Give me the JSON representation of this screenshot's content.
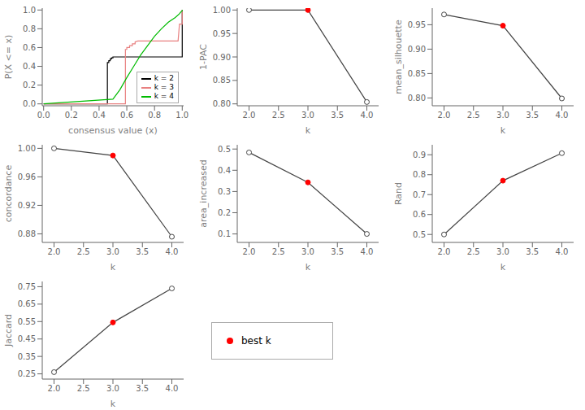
{
  "chart_data": [
    {
      "type": "line",
      "xlabel": "consensus value (x)",
      "ylabel": "P(X <= x)",
      "xlim": [
        -0.01,
        1.01
      ],
      "ylim": [
        -0.02,
        1.02
      ],
      "xticks": [
        {
          "value": 0.0,
          "label": "0.0"
        },
        0.2,
        0.4,
        0.6,
        0.8,
        {
          "value": 1.0,
          "label": "1.0"
        }
      ],
      "yticks": [
        {
          "value": 0.0,
          "label": "0.0"
        },
        0.2,
        0.4,
        0.6,
        0.8,
        {
          "value": 1.0,
          "label": "1.0"
        }
      ],
      "legend": "lower right",
      "series": [
        {
          "name": "k = 2",
          "color": "#000000",
          "x": [
            0.0,
            0.0,
            0.46,
            0.46,
            0.47,
            0.47,
            0.48,
            0.48,
            0.49,
            0.49,
            0.5,
            0.5,
            0.51,
            0.52,
            1.0,
            1.0
          ],
          "values": [
            0.0,
            0.0,
            0.0,
            0.44,
            0.44,
            0.46,
            0.46,
            0.48,
            0.48,
            0.49,
            0.49,
            0.5,
            0.5,
            0.5,
            0.5,
            1.0
          ]
        },
        {
          "name": "k = 3",
          "color": "#E88080",
          "x": [
            0.0,
            0.0,
            0.59,
            0.59,
            0.6,
            0.6,
            0.62,
            0.62,
            0.64,
            0.64,
            0.66,
            0.66,
            0.68,
            0.97,
            0.98,
            1.0,
            1.0
          ],
          "values": [
            0.0,
            0.0,
            0.0,
            0.58,
            0.58,
            0.6,
            0.6,
            0.62,
            0.62,
            0.64,
            0.64,
            0.66,
            0.67,
            0.67,
            0.85,
            0.85,
            1.0
          ]
        },
        {
          "name": "k = 4",
          "color": "#00BB00",
          "x": [
            0.0,
            0.0,
            0.5,
            0.55,
            0.6,
            0.65,
            0.7,
            0.75,
            0.8,
            0.85,
            0.9,
            0.95,
            0.98,
            0.99,
            1.0,
            1.0
          ],
          "values": [
            0.0,
            0.0,
            0.05,
            0.15,
            0.28,
            0.4,
            0.52,
            0.62,
            0.72,
            0.8,
            0.87,
            0.92,
            0.96,
            0.98,
            0.99,
            1.0
          ]
        }
      ]
    },
    {
      "type": "line",
      "xlabel": "k",
      "ylabel": "1-PAC",
      "x": [
        2,
        3,
        4
      ],
      "values": [
        1.0,
        1.0,
        0.804
      ],
      "color": "#444444",
      "marker": "circle",
      "best_k": 3,
      "xlim": [
        1.8,
        4.2
      ],
      "xticks": [
        {
          "value": 2,
          "label": "2.0"
        },
        2.5,
        {
          "value": 3,
          "label": "3.0"
        },
        3.5,
        {
          "value": 4,
          "label": "4.0"
        }
      ],
      "ylim": [
        0.796,
        1.004
      ],
      "yticks": [
        {
          "value": 0.8,
          "label": "0.80"
        },
        0.85,
        {
          "value": 0.9,
          "label": "0.90"
        },
        0.95,
        {
          "value": 1.0,
          "label": "1.00"
        }
      ]
    },
    {
      "type": "line",
      "xlabel": "k",
      "ylabel": "mean_silhouette",
      "x": [
        2,
        3,
        4
      ],
      "values": [
        0.971,
        0.948,
        0.799
      ],
      "color": "#444444",
      "marker": "circle",
      "best_k": 3,
      "xlim": [
        1.8,
        4.2
      ],
      "xticks": [
        {
          "value": 2,
          "label": "2.0"
        },
        2.5,
        {
          "value": 3,
          "label": "3.0"
        },
        3.5,
        {
          "value": 4,
          "label": "4.0"
        }
      ],
      "ylim": [
        0.784,
        0.984
      ],
      "yticks": [
        {
          "value": 0.8,
          "label": "0.80"
        },
        0.85,
        {
          "value": 0.9,
          "label": "0.90"
        },
        0.95
      ]
    },
    {
      "type": "line",
      "xlabel": "k",
      "ylabel": "concordance",
      "x": [
        2,
        3,
        4
      ],
      "values": [
        1.0,
        0.99,
        0.876
      ],
      "color": "#444444",
      "marker": "circle",
      "best_k": 3,
      "xlim": [
        1.8,
        4.2
      ],
      "xticks": [
        {
          "value": 2,
          "label": "2.0"
        },
        2.5,
        {
          "value": 3,
          "label": "3.0"
        },
        3.5,
        {
          "value": 4,
          "label": "4.0"
        }
      ],
      "ylim": [
        0.868,
        1.005
      ],
      "yticks": [
        0.88,
        0.92,
        0.96,
        {
          "value": 1.0,
          "label": "1.00"
        }
      ]
    },
    {
      "type": "line",
      "xlabel": "k",
      "ylabel": "area_increased",
      "x": [
        2,
        3,
        4
      ],
      "values": [
        0.484,
        0.343,
        0.1
      ],
      "color": "#444444",
      "marker": "circle",
      "best_k": 3,
      "xlim": [
        1.8,
        4.2
      ],
      "xticks": [
        {
          "value": 2,
          "label": "2.0"
        },
        2.5,
        {
          "value": 3,
          "label": "3.0"
        },
        3.5,
        {
          "value": 4,
          "label": "4.0"
        }
      ],
      "ylim": [
        0.06,
        0.52
      ],
      "yticks": [
        0.1,
        0.2,
        0.3,
        0.4,
        0.5
      ]
    },
    {
      "type": "line",
      "xlabel": "k",
      "ylabel": "Rand",
      "x": [
        2,
        3,
        4
      ],
      "values": [
        0.5,
        0.77,
        0.908
      ],
      "color": "#444444",
      "marker": "circle",
      "best_k": 3,
      "xlim": [
        1.8,
        4.2
      ],
      "xticks": [
        {
          "value": 2,
          "label": "2.0"
        },
        2.5,
        {
          "value": 3,
          "label": "3.0"
        },
        3.5,
        {
          "value": 4,
          "label": "4.0"
        }
      ],
      "ylim": [
        0.46,
        0.95
      ],
      "yticks": [
        0.5,
        0.6,
        0.7,
        0.8,
        0.9
      ]
    },
    {
      "type": "line",
      "xlabel": "k",
      "ylabel": "Jaccard",
      "x": [
        2,
        3,
        4
      ],
      "values": [
        0.26,
        0.545,
        0.74
      ],
      "color": "#444444",
      "marker": "circle",
      "best_k": 3,
      "xlim": [
        1.8,
        4.2
      ],
      "xticks": [
        {
          "value": 2,
          "label": "2.0"
        },
        2.5,
        {
          "value": 3,
          "label": "3.0"
        },
        3.5,
        {
          "value": 4,
          "label": "4.0"
        }
      ],
      "ylim": [
        0.22,
        0.78
      ],
      "yticks": [
        0.25,
        0.35,
        0.45,
        0.55,
        0.65,
        0.75
      ]
    },
    {
      "type": "legend",
      "series": [
        {
          "name": "best k",
          "color": "red",
          "marker": "circle"
        }
      ]
    }
  ]
}
